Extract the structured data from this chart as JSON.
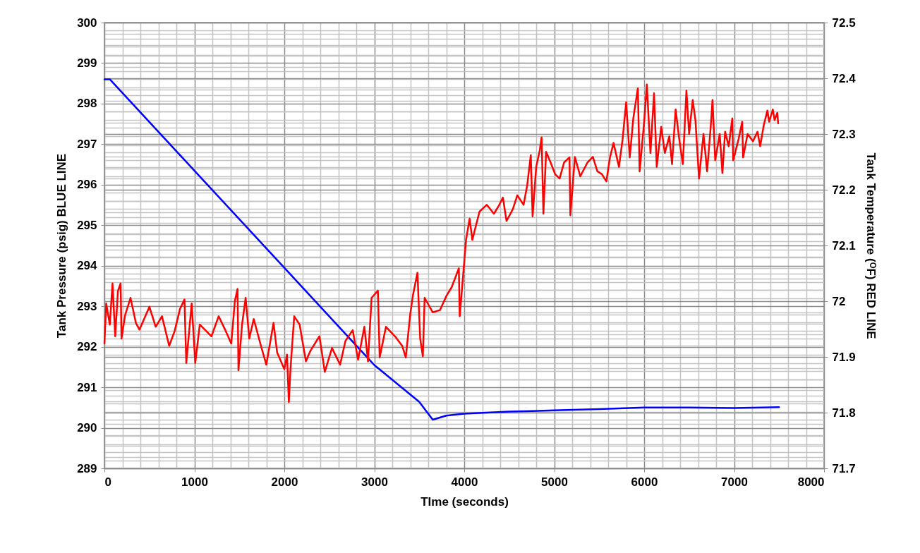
{
  "chart_data": {
    "type": "line",
    "xlabel": "TIme (seconds)",
    "ylabel": "Tank Pressure (psig) BLUE LINE",
    "y2label": "Tank Temperature (ᴼF) RED LINE",
    "xlim": [
      0,
      8000
    ],
    "xticks": [
      0,
      1000,
      2000,
      3000,
      4000,
      5000,
      6000,
      7000,
      8000
    ],
    "ylim": [
      289,
      300
    ],
    "yticks": [
      289,
      290,
      291,
      292,
      293,
      294,
      295,
      296,
      297,
      298,
      299,
      300
    ],
    "y2lim": [
      71.7,
      72.5
    ],
    "y2ticks": [
      71.7,
      71.8,
      71.9,
      72,
      72.1,
      72.2,
      72.3,
      72.4,
      72.5
    ],
    "grid": true,
    "line_style": "solid",
    "series": [
      {
        "color": "#0000ff",
        "x": [
          0,
          60,
          2000,
          3000,
          3500,
          3650,
          3800,
          4000,
          4500,
          5000,
          5500,
          6000,
          6500,
          7000,
          7500
        ],
        "values": [
          298.6,
          298.6,
          293.95,
          291.55,
          290.64,
          290.2,
          290.3,
          290.35,
          290.4,
          290.43,
          290.46,
          290.5,
          290.5,
          290.49,
          290.51
        ]
      },
      {
        "color": "#ff0000",
        "axis": "y2",
        "x": [
          0,
          20,
          60,
          90,
          120,
          150,
          180,
          190,
          230,
          290,
          350,
          390,
          500,
          570,
          640,
          720,
          780,
          840,
          890,
          910,
          970,
          1010,
          1060,
          1190,
          1270,
          1350,
          1410,
          1450,
          1480,
          1490,
          1530,
          1570,
          1610,
          1660,
          1740,
          1800,
          1880,
          1920,
          2000,
          2030,
          2050,
          2070,
          2110,
          2170,
          2240,
          2290,
          2390,
          2450,
          2530,
          2620,
          2680,
          2760,
          2820,
          2890,
          2930,
          2970,
          3040,
          3060,
          3130,
          3230,
          3310,
          3350,
          3400,
          3430,
          3480,
          3510,
          3540,
          3560,
          3650,
          3730,
          3800,
          3860,
          3940,
          3950,
          4020,
          4060,
          4090,
          4170,
          4250,
          4330,
          4380,
          4430,
          4470,
          4540,
          4590,
          4660,
          4700,
          4740,
          4760,
          4800,
          4840,
          4860,
          4880,
          4910,
          4960,
          5010,
          5060,
          5110,
          5170,
          5180,
          5230,
          5290,
          5370,
          5430,
          5480,
          5530,
          5580,
          5620,
          5660,
          5720,
          5760,
          5800,
          5840,
          5880,
          5930,
          5950,
          6000,
          6030,
          6070,
          6110,
          6140,
          6190,
          6230,
          6280,
          6310,
          6350,
          6390,
          6430,
          6470,
          6500,
          6540,
          6570,
          6610,
          6660,
          6700,
          6740,
          6760,
          6790,
          6840,
          6870,
          6900,
          6940,
          6980,
          6990,
          7050,
          7090,
          7100,
          7150,
          7210,
          7260,
          7290,
          7330,
          7370,
          7390,
          7430,
          7450,
          7480,
          7490
        ],
        "values": [
          71.924,
          71.996,
          71.958,
          72.032,
          71.937,
          72.018,
          72.032,
          71.933,
          71.975,
          72.006,
          71.961,
          71.949,
          71.99,
          71.954,
          71.973,
          71.92,
          71.946,
          71.986,
          72.003,
          71.889,
          71.996,
          71.889,
          71.958,
          71.937,
          71.973,
          71.946,
          71.924,
          72.0,
          72.022,
          71.876,
          71.958,
          72.006,
          71.933,
          71.968,
          71.92,
          71.886,
          71.961,
          71.908,
          71.878,
          71.904,
          71.819,
          71.882,
          71.973,
          71.958,
          71.892,
          71.911,
          71.937,
          71.873,
          71.916,
          71.886,
          71.929,
          71.948,
          71.895,
          71.954,
          71.892,
          72.006,
          72.019,
          71.899,
          71.954,
          71.937,
          71.92,
          71.899,
          71.977,
          72.011,
          72.051,
          71.933,
          71.901,
          72.006,
          71.98,
          71.984,
          72.009,
          72.025,
          72.059,
          71.973,
          72.11,
          72.148,
          72.11,
          72.161,
          72.173,
          72.157,
          72.17,
          72.186,
          72.144,
          72.165,
          72.19,
          72.173,
          72.208,
          72.262,
          72.152,
          72.241,
          72.271,
          72.294,
          72.157,
          72.268,
          72.249,
          72.228,
          72.22,
          72.249,
          72.258,
          72.154,
          72.259,
          72.224,
          72.249,
          72.259,
          72.233,
          72.228,
          72.215,
          72.258,
          72.284,
          72.241,
          72.29,
          72.357,
          72.258,
          72.329,
          72.382,
          72.233,
          72.322,
          72.389,
          72.266,
          72.373,
          72.241,
          72.313,
          72.266,
          72.296,
          72.246,
          72.344,
          72.291,
          72.246,
          72.378,
          72.3,
          72.361,
          72.325,
          72.22,
          72.3,
          72.233,
          72.313,
          72.361,
          72.253,
          72.3,
          72.23,
          72.304,
          72.278,
          72.328,
          72.253,
          72.291,
          72.322,
          72.258,
          72.3,
          72.287,
          72.304,
          72.278,
          72.316,
          72.342,
          72.322,
          72.344,
          72.325,
          72.338,
          72.319
        ]
      }
    ]
  }
}
